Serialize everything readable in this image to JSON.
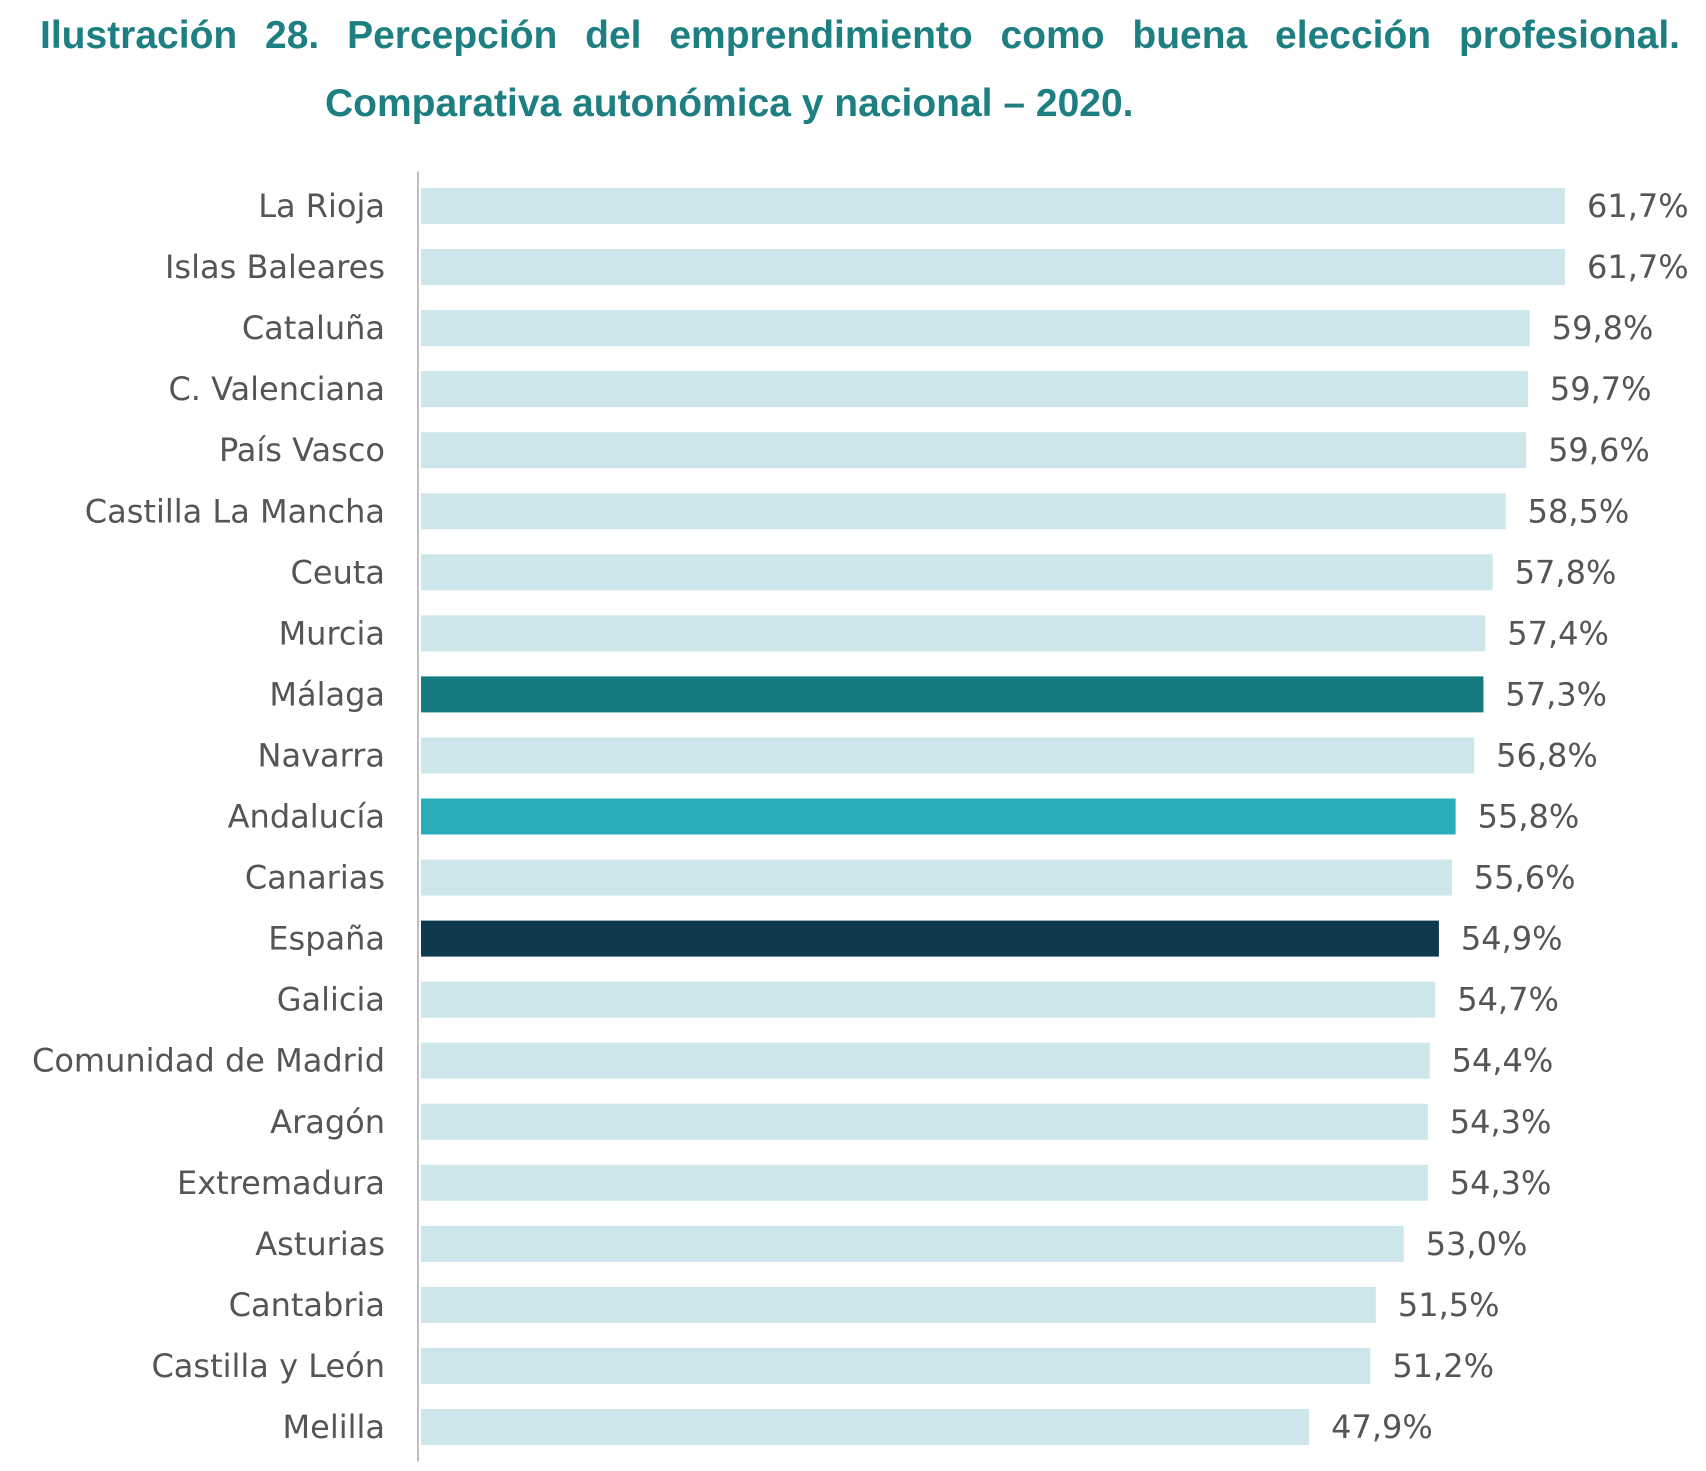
{
  "title_line1": "Ilustración 28. Percepción del emprendimiento como buena elección profesional.",
  "title_line2": "Comparativa autonómica y nacional – 2020.",
  "colors": {
    "title": "#1d7f82",
    "default_bar": "#cce6eb",
    "highlight_malaga": "#177a7e",
    "highlight_andalucia": "#29aeb9",
    "highlight_espana": "#0d3a4f",
    "axis": "#bfbfbf",
    "text": "#555555"
  },
  "chart_data": {
    "type": "bar",
    "orientation": "horizontal",
    "title": "Ilustración 28. Percepción del emprendimiento como buena elección profesional. Comparativa autonómica y nacional – 2020.",
    "xlabel": "",
    "ylabel": "",
    "categories": [
      "La Rioja",
      "Islas Baleares",
      "Cataluña",
      "C. Valenciana",
      "País Vasco",
      "Castilla La Mancha",
      "Ceuta",
      "Murcia",
      "Málaga",
      "Navarra",
      "Andalucía",
      "Canarias",
      "España",
      "Galicia",
      "Comunidad de Madrid",
      "Aragón",
      "Extremadura",
      "Asturias",
      "Cantabria",
      "Castilla y León",
      "Melilla"
    ],
    "values": [
      61.7,
      61.7,
      59.8,
      59.7,
      59.6,
      58.5,
      57.8,
      57.4,
      57.3,
      56.8,
      55.8,
      55.6,
      54.9,
      54.7,
      54.4,
      54.3,
      54.3,
      53.0,
      51.5,
      51.2,
      47.9
    ],
    "value_labels": [
      "61,7%",
      "61,7%",
      "59,8%",
      "59,7%",
      "59,6%",
      "58,5%",
      "57,8%",
      "57,4%",
      "57,3%",
      "56,8%",
      "55,8%",
      "55,6%",
      "54,9%",
      "54,7%",
      "54,4%",
      "54,3%",
      "54,3%",
      "53,0%",
      "51,5%",
      "51,2%",
      "47,9%"
    ],
    "highlights": {
      "Málaga": "#177a7e",
      "Andalucía": "#29aeb9",
      "España": "#0d3a4f"
    },
    "xlim": [
      0,
      61.7
    ],
    "grid": false,
    "legend": "none"
  }
}
